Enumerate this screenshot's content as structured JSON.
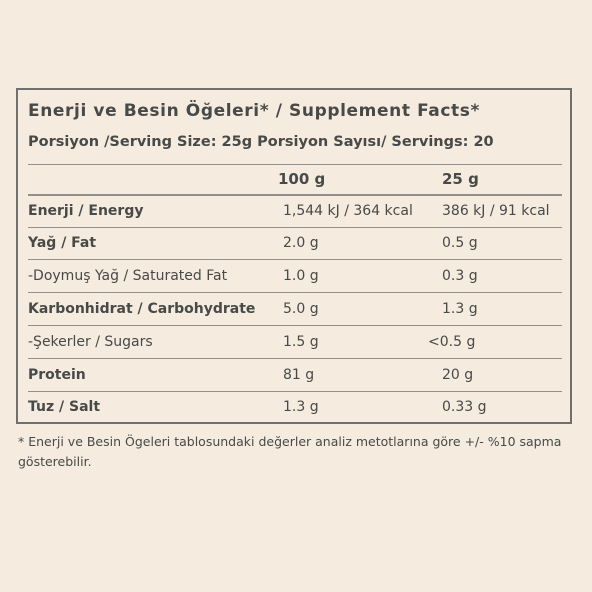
{
  "panel": {
    "title": "Enerji ve Besin Öğeleri* / Supplement Facts*",
    "serving_line": "Porsiyon /Serving Size: 25g Porsiyon Sayısı/ Servings: 20"
  },
  "table": {
    "columns": [
      "100 g",
      "25 g"
    ],
    "rows": [
      {
        "label": "Enerji / Energy",
        "bold": true,
        "v100": "1,544 kJ / 364 kcal",
        "v25": "386 kJ / 91 kcal"
      },
      {
        "label": "Yağ / Fat",
        "bold": true,
        "v100": "2.0 g",
        "v25": "0.5 g"
      },
      {
        "label": "-Doymuş Yağ / Saturated Fat",
        "bold": false,
        "v100": "1.0 g",
        "v25": "0.3 g"
      },
      {
        "label": "Karbonhidrat / Carbohydrate",
        "bold": true,
        "v100": "5.0 g",
        "v25": "1.3 g"
      },
      {
        "label": "-Şekerler / Sugars",
        "bold": false,
        "v100": "1.5 g",
        "v25": "<0.5 g"
      },
      {
        "label": "Protein",
        "bold": true,
        "v100": "81 g",
        "v25": "20 g"
      },
      {
        "label": "Tuz / Salt",
        "bold": true,
        "v100": "1.3 g",
        "v25": "0.33 g"
      }
    ]
  },
  "footnote": "* Enerji ve Besin Ögeleri tablosundaki değerler analiz metotlarına göre +/- %10 sapma gösterebilir.",
  "colors": {
    "background": "#f5ebdf",
    "text": "#474a48",
    "border": "#6e716d"
  }
}
